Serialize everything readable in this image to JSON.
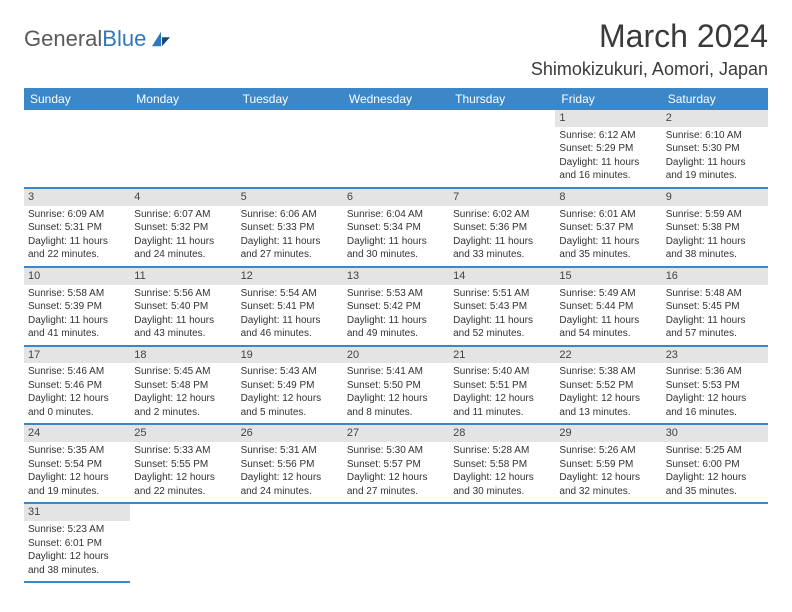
{
  "logo": {
    "text1": "General",
    "text2": "Blue"
  },
  "title": "March 2024",
  "location": "Shimokizukuri, Aomori, Japan",
  "colors": {
    "header_bg": "#3b87c8",
    "header_text": "#ffffff",
    "daynum_bg": "#e4e4e4",
    "row_border": "#3b87c8",
    "logo_gray": "#5a5a5a",
    "logo_blue": "#2f78bd"
  },
  "dayNames": [
    "Sunday",
    "Monday",
    "Tuesday",
    "Wednesday",
    "Thursday",
    "Friday",
    "Saturday"
  ],
  "weeks": [
    [
      null,
      null,
      null,
      null,
      null,
      {
        "d": "1",
        "sunrise": "6:12 AM",
        "sunset": "5:29 PM",
        "daylight": "11 hours and 16 minutes."
      },
      {
        "d": "2",
        "sunrise": "6:10 AM",
        "sunset": "5:30 PM",
        "daylight": "11 hours and 19 minutes."
      }
    ],
    [
      {
        "d": "3",
        "sunrise": "6:09 AM",
        "sunset": "5:31 PM",
        "daylight": "11 hours and 22 minutes."
      },
      {
        "d": "4",
        "sunrise": "6:07 AM",
        "sunset": "5:32 PM",
        "daylight": "11 hours and 24 minutes."
      },
      {
        "d": "5",
        "sunrise": "6:06 AM",
        "sunset": "5:33 PM",
        "daylight": "11 hours and 27 minutes."
      },
      {
        "d": "6",
        "sunrise": "6:04 AM",
        "sunset": "5:34 PM",
        "daylight": "11 hours and 30 minutes."
      },
      {
        "d": "7",
        "sunrise": "6:02 AM",
        "sunset": "5:36 PM",
        "daylight": "11 hours and 33 minutes."
      },
      {
        "d": "8",
        "sunrise": "6:01 AM",
        "sunset": "5:37 PM",
        "daylight": "11 hours and 35 minutes."
      },
      {
        "d": "9",
        "sunrise": "5:59 AM",
        "sunset": "5:38 PM",
        "daylight": "11 hours and 38 minutes."
      }
    ],
    [
      {
        "d": "10",
        "sunrise": "5:58 AM",
        "sunset": "5:39 PM",
        "daylight": "11 hours and 41 minutes."
      },
      {
        "d": "11",
        "sunrise": "5:56 AM",
        "sunset": "5:40 PM",
        "daylight": "11 hours and 43 minutes."
      },
      {
        "d": "12",
        "sunrise": "5:54 AM",
        "sunset": "5:41 PM",
        "daylight": "11 hours and 46 minutes."
      },
      {
        "d": "13",
        "sunrise": "5:53 AM",
        "sunset": "5:42 PM",
        "daylight": "11 hours and 49 minutes."
      },
      {
        "d": "14",
        "sunrise": "5:51 AM",
        "sunset": "5:43 PM",
        "daylight": "11 hours and 52 minutes."
      },
      {
        "d": "15",
        "sunrise": "5:49 AM",
        "sunset": "5:44 PM",
        "daylight": "11 hours and 54 minutes."
      },
      {
        "d": "16",
        "sunrise": "5:48 AM",
        "sunset": "5:45 PM",
        "daylight": "11 hours and 57 minutes."
      }
    ],
    [
      {
        "d": "17",
        "sunrise": "5:46 AM",
        "sunset": "5:46 PM",
        "daylight": "12 hours and 0 minutes."
      },
      {
        "d": "18",
        "sunrise": "5:45 AM",
        "sunset": "5:48 PM",
        "daylight": "12 hours and 2 minutes."
      },
      {
        "d": "19",
        "sunrise": "5:43 AM",
        "sunset": "5:49 PM",
        "daylight": "12 hours and 5 minutes."
      },
      {
        "d": "20",
        "sunrise": "5:41 AM",
        "sunset": "5:50 PM",
        "daylight": "12 hours and 8 minutes."
      },
      {
        "d": "21",
        "sunrise": "5:40 AM",
        "sunset": "5:51 PM",
        "daylight": "12 hours and 11 minutes."
      },
      {
        "d": "22",
        "sunrise": "5:38 AM",
        "sunset": "5:52 PM",
        "daylight": "12 hours and 13 minutes."
      },
      {
        "d": "23",
        "sunrise": "5:36 AM",
        "sunset": "5:53 PM",
        "daylight": "12 hours and 16 minutes."
      }
    ],
    [
      {
        "d": "24",
        "sunrise": "5:35 AM",
        "sunset": "5:54 PM",
        "daylight": "12 hours and 19 minutes."
      },
      {
        "d": "25",
        "sunrise": "5:33 AM",
        "sunset": "5:55 PM",
        "daylight": "12 hours and 22 minutes."
      },
      {
        "d": "26",
        "sunrise": "5:31 AM",
        "sunset": "5:56 PM",
        "daylight": "12 hours and 24 minutes."
      },
      {
        "d": "27",
        "sunrise": "5:30 AM",
        "sunset": "5:57 PM",
        "daylight": "12 hours and 27 minutes."
      },
      {
        "d": "28",
        "sunrise": "5:28 AM",
        "sunset": "5:58 PM",
        "daylight": "12 hours and 30 minutes."
      },
      {
        "d": "29",
        "sunrise": "5:26 AM",
        "sunset": "5:59 PM",
        "daylight": "12 hours and 32 minutes."
      },
      {
        "d": "30",
        "sunrise": "5:25 AM",
        "sunset": "6:00 PM",
        "daylight": "12 hours and 35 minutes."
      }
    ],
    [
      {
        "d": "31",
        "sunrise": "5:23 AM",
        "sunset": "6:01 PM",
        "daylight": "12 hours and 38 minutes."
      },
      null,
      null,
      null,
      null,
      null,
      null
    ]
  ],
  "labels": {
    "sunrise": "Sunrise: ",
    "sunset": "Sunset: ",
    "daylight": "Daylight: "
  }
}
